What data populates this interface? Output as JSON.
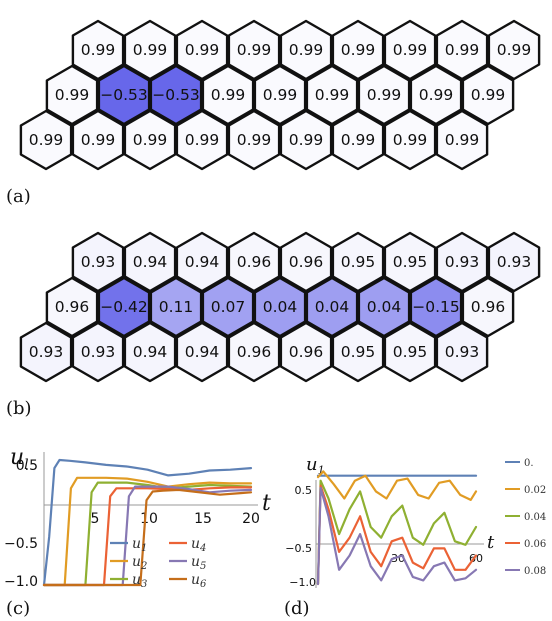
{
  "panels": {
    "a": {
      "label": "(a)",
      "rows": [
        [
          "0.99",
          "0.99",
          "0.99",
          "0.99",
          "0.99",
          "0.99",
          "0.99",
          "0.99",
          "0.99"
        ],
        [
          "0.99",
          "−0.53",
          "−0.53",
          "0.99",
          "0.99",
          "0.99",
          "0.99",
          "0.99",
          "0.99"
        ],
        [
          "0.99",
          "0.99",
          "0.99",
          "0.99",
          "0.99",
          "0.99",
          "0.99",
          "0.99",
          "0.99"
        ]
      ],
      "values": [
        [
          0.99,
          0.99,
          0.99,
          0.99,
          0.99,
          0.99,
          0.99,
          0.99,
          0.99
        ],
        [
          0.99,
          -0.53,
          -0.53,
          0.99,
          0.99,
          0.99,
          0.99,
          0.99,
          0.99
        ],
        [
          0.99,
          0.99,
          0.99,
          0.99,
          0.99,
          0.99,
          0.99,
          0.99,
          0.99
        ]
      ]
    },
    "b": {
      "label": "(b)",
      "rows": [
        [
          "0.93",
          "0.94",
          "0.94",
          "0.96",
          "0.96",
          "0.95",
          "0.95",
          "0.93",
          "0.93"
        ],
        [
          "0.96",
          "−0.42",
          "0.11",
          "0.07",
          "0.04",
          "0.04",
          "0.04",
          "−0.15",
          "0.96"
        ],
        [
          "0.93",
          "0.93",
          "0.94",
          "0.94",
          "0.96",
          "0.96",
          "0.95",
          "0.95",
          "0.93"
        ]
      ],
      "values": [
        [
          0.93,
          0.94,
          0.94,
          0.96,
          0.96,
          0.95,
          0.95,
          0.93,
          0.93
        ],
        [
          0.96,
          -0.42,
          0.11,
          0.07,
          0.04,
          0.04,
          0.04,
          -0.15,
          0.96
        ],
        [
          0.93,
          0.93,
          0.94,
          0.94,
          0.96,
          0.96,
          0.95,
          0.95,
          0.93
        ]
      ]
    },
    "c": {
      "label": "(c)",
      "ylabel_var": "u",
      "ylabel_sub": "l",
      "xlabel": "t",
      "x_ticks": [
        "5",
        "10",
        "15",
        "20"
      ],
      "y_ticks": [
        "0.5",
        "−0.5",
        "−1.0"
      ],
      "legend": [
        {
          "var": "u",
          "sub": "1"
        },
        {
          "var": "u",
          "sub": "2"
        },
        {
          "var": "u",
          "sub": "3"
        },
        {
          "var": "u",
          "sub": "4"
        },
        {
          "var": "u",
          "sub": "5"
        },
        {
          "var": "u",
          "sub": "6"
        }
      ]
    },
    "d": {
      "label": "(d)",
      "ylabel_var": "u",
      "ylabel_sub": "1",
      "xlabel": "t",
      "x_ticks": [
        "30",
        "60"
      ],
      "y_ticks": [
        "0.5",
        "−0.5",
        "−1.0"
      ],
      "legend": [
        "0.",
        "0.02",
        "0.04",
        "0.06",
        "0.08"
      ]
    }
  },
  "colors": {
    "series": [
      "#5e81b5",
      "#e19c24",
      "#8fb032",
      "#eb6235",
      "#8778b3",
      "#c56e1a"
    ],
    "hex_stroke": "#111111"
  },
  "chart_data": [
    {
      "type": "line",
      "panel": "c",
      "xlabel": "t",
      "ylabel": "u_l",
      "xlim": [
        0,
        20
      ],
      "ylim": [
        -1.0,
        0.6
      ],
      "series": [
        {
          "name": "u1",
          "x": [
            0,
            0.5,
            1.0,
            1.5,
            2.5,
            4,
            6,
            8,
            10,
            12,
            14,
            16,
            18,
            20
          ],
          "y": [
            -1,
            -0.4,
            0.45,
            0.55,
            0.54,
            0.52,
            0.49,
            0.47,
            0.43,
            0.36,
            0.38,
            0.42,
            0.43,
            0.45
          ]
        },
        {
          "name": "u2",
          "x": [
            0,
            2.0,
            2.6,
            3.2,
            4,
            6,
            8,
            10,
            12,
            14,
            16,
            18,
            20
          ],
          "y": [
            -1,
            -1,
            0.2,
            0.33,
            0.33,
            0.33,
            0.32,
            0.28,
            0.22,
            0.25,
            0.27,
            0.26,
            0.26
          ]
        },
        {
          "name": "u3",
          "x": [
            0,
            4.0,
            4.6,
            5.2,
            6,
            8,
            10,
            12,
            14,
            16,
            18,
            20
          ],
          "y": [
            -1,
            -1,
            0.15,
            0.27,
            0.27,
            0.27,
            0.24,
            0.2,
            0.22,
            0.24,
            0.23,
            0.22
          ]
        },
        {
          "name": "u4",
          "x": [
            0,
            5.8,
            6.4,
            7.0,
            8,
            10,
            12,
            14,
            16,
            18,
            20
          ],
          "y": [
            -1,
            -1,
            0.1,
            0.2,
            0.2,
            0.2,
            0.19,
            0.18,
            0.2,
            0.21,
            0.21
          ]
        },
        {
          "name": "u5",
          "x": [
            0,
            7.6,
            8.2,
            8.8,
            10,
            12,
            14,
            16,
            18,
            20
          ],
          "y": [
            -1,
            -1,
            0.1,
            0.22,
            0.22,
            0.22,
            0.19,
            0.15,
            0.17,
            0.18
          ]
        },
        {
          "name": "u6",
          "x": [
            0,
            9.3,
            9.9,
            10.5,
            11.5,
            13,
            15,
            17,
            19,
            20
          ],
          "y": [
            -1,
            -1,
            0.05,
            0.16,
            0.17,
            0.18,
            0.15,
            0.12,
            0.14,
            0.15
          ]
        }
      ]
    },
    {
      "type": "line",
      "panel": "d",
      "xlabel": "t",
      "ylabel": "u_1",
      "xlim": [
        0,
        60
      ],
      "ylim": [
        -1.0,
        0.6
      ],
      "series": [
        {
          "name": "0.",
          "x": [
            0,
            2,
            5,
            10,
            20,
            30,
            40,
            50,
            60
          ],
          "y": [
            0.52,
            0.52,
            0.52,
            0.52,
            0.52,
            0.52,
            0.52,
            0.52,
            0.52
          ]
        },
        {
          "name": "0.02",
          "x": [
            0,
            2,
            6,
            10,
            14,
            18,
            22,
            26,
            30,
            34,
            38,
            42,
            46,
            50,
            54,
            58,
            60
          ],
          "y": [
            0.5,
            0.58,
            0.4,
            0.2,
            0.45,
            0.52,
            0.3,
            0.2,
            0.45,
            0.48,
            0.25,
            0.2,
            0.42,
            0.45,
            0.25,
            0.18,
            0.3
          ]
        },
        {
          "name": "0.04",
          "x": [
            0,
            1,
            4,
            8,
            12,
            16,
            20,
            24,
            28,
            32,
            36,
            40,
            44,
            48,
            52,
            56,
            60
          ],
          "y": [
            -1,
            0.45,
            0.2,
            -0.3,
            0.05,
            0.3,
            -0.2,
            -0.35,
            -0.05,
            0.1,
            -0.35,
            -0.45,
            -0.15,
            0.0,
            -0.4,
            -0.45,
            -0.2
          ]
        },
        {
          "name": "0.06",
          "x": [
            0,
            1,
            4,
            8,
            12,
            16,
            20,
            24,
            28,
            32,
            36,
            40,
            44,
            48,
            52,
            56,
            60
          ],
          "y": [
            -1,
            0.38,
            0.05,
            -0.55,
            -0.35,
            -0.05,
            -0.55,
            -0.75,
            -0.4,
            -0.35,
            -0.7,
            -0.78,
            -0.5,
            -0.5,
            -0.8,
            -0.8,
            -0.6
          ]
        },
        {
          "name": "0.08",
          "x": [
            0,
            1,
            4,
            8,
            12,
            16,
            20,
            24,
            28,
            32,
            36,
            40,
            44,
            48,
            52,
            56,
            60
          ],
          "y": [
            -1,
            0.35,
            -0.05,
            -0.8,
            -0.6,
            -0.3,
            -0.75,
            -0.95,
            -0.65,
            -0.6,
            -0.9,
            -0.95,
            -0.75,
            -0.7,
            -0.95,
            -0.92,
            -0.8
          ]
        }
      ]
    }
  ]
}
